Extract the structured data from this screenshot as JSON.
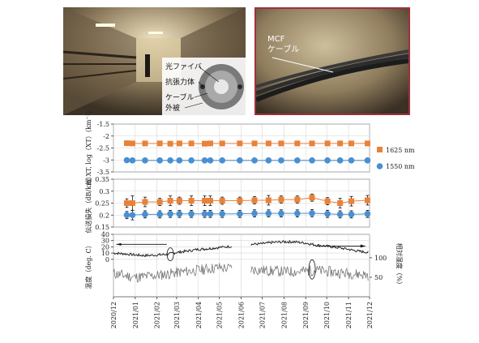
{
  "photos": {
    "tunnel": {
      "callouts": [
        "光ファイバ",
        "抗張力体",
        "ケーブル",
        "外被"
      ]
    },
    "cable": {
      "label_line1": "MCF",
      "label_line2": "ケーブル"
    }
  },
  "colors": {
    "orange": "#e8823a",
    "blue": "#4a8fd0",
    "temp": "#222222",
    "humidity": "#777777",
    "grid": "#d7d7d7",
    "photo_border": "#a0303a"
  },
  "chart_data": [
    {
      "type": "line",
      "ylabel": "総 XT, log（XT）(km⁻¹)",
      "ylim": [
        -3.5,
        -1.5
      ],
      "yticks": [
        "-1.5",
        "-2",
        "-2.5",
        "-3",
        "-3.5"
      ],
      "legend_position": "right",
      "series": [
        {
          "name": "1625 nm",
          "marker": "square",
          "color": "#e8823a",
          "points": [
            [
              "2020-12-20",
              -2.3
            ],
            [
              "2020-12-28",
              -2.31
            ],
            [
              "2021-01-15",
              -2.31
            ],
            [
              "2021-02-05",
              -2.31
            ],
            [
              "2021-02-20",
              -2.32
            ],
            [
              "2021-03-05",
              -2.31
            ],
            [
              "2021-03-22",
              -2.31
            ],
            [
              "2021-04-10",
              -2.32
            ],
            [
              "2021-04-18",
              -2.31
            ],
            [
              "2021-05-05",
              -2.31
            ],
            [
              "2021-05-30",
              -2.31
            ],
            [
              "2021-06-20",
              -2.31
            ],
            [
              "2021-07-10",
              -2.31
            ],
            [
              "2021-07-28",
              -2.31
            ],
            [
              "2021-08-20",
              -2.31
            ],
            [
              "2021-09-10",
              -2.31
            ],
            [
              "2021-10-02",
              -2.31
            ],
            [
              "2021-10-20",
              -2.31
            ],
            [
              "2021-11-05",
              -2.31
            ],
            [
              "2021-11-28",
              -2.31
            ]
          ]
        },
        {
          "name": "1550 nm",
          "marker": "circle",
          "color": "#4a8fd0",
          "points": [
            [
              "2020-12-20",
              -3.01
            ],
            [
              "2020-12-28",
              -3.02
            ],
            [
              "2021-01-15",
              -3.02
            ],
            [
              "2021-02-05",
              -3.02
            ],
            [
              "2021-02-20",
              -3.02
            ],
            [
              "2021-03-05",
              -3.02
            ],
            [
              "2021-03-22",
              -3.02
            ],
            [
              "2021-04-10",
              -3.02
            ],
            [
              "2021-04-18",
              -3.02
            ],
            [
              "2021-05-05",
              -3.02
            ],
            [
              "2021-05-30",
              -3.02
            ],
            [
              "2021-06-20",
              -3.02
            ],
            [
              "2021-07-10",
              -3.02
            ],
            [
              "2021-07-28",
              -3.02
            ],
            [
              "2021-08-20",
              -3.02
            ],
            [
              "2021-09-10",
              -3.02
            ],
            [
              "2021-10-02",
              -3.02
            ],
            [
              "2021-10-20",
              -3.02
            ],
            [
              "2021-11-05",
              -3.02
            ],
            [
              "2021-11-28",
              -3.02
            ]
          ]
        }
      ]
    },
    {
      "type": "scatter",
      "ylabel": "伝送損失（dB/km）",
      "ylim": [
        0.15,
        0.35
      ],
      "yticks": [
        "0.35",
        "0.3",
        "0.25",
        "0.2",
        "0.15"
      ],
      "series": [
        {
          "name": "1625 nm",
          "marker": "square",
          "color": "#e8823a",
          "points": [
            [
              "2020-12-20",
              0.25,
              0.018
            ],
            [
              "2020-12-28",
              0.25,
              0.03
            ],
            [
              "2021-01-15",
              0.255,
              0.02
            ],
            [
              "2021-02-05",
              0.255,
              0.015
            ],
            [
              "2021-02-20",
              0.26,
              0.02
            ],
            [
              "2021-03-05",
              0.26,
              0.015
            ],
            [
              "2021-03-22",
              0.26,
              0.02
            ],
            [
              "2021-04-10",
              0.26,
              0.02
            ],
            [
              "2021-04-18",
              0.26,
              0.02
            ],
            [
              "2021-05-05",
              0.26,
              0.015
            ],
            [
              "2021-05-30",
              0.26,
              0.015
            ],
            [
              "2021-06-20",
              0.262,
              0.015
            ],
            [
              "2021-07-10",
              0.262,
              0.02
            ],
            [
              "2021-07-28",
              0.265,
              0.015
            ],
            [
              "2021-08-20",
              0.265,
              0.015
            ],
            [
              "2021-09-10",
              0.273,
              0.015
            ],
            [
              "2021-10-02",
              0.258,
              0.015
            ],
            [
              "2021-10-20",
              0.25,
              0.02
            ],
            [
              "2021-11-05",
              0.258,
              0.02
            ],
            [
              "2021-11-28",
              0.262,
              0.02
            ]
          ]
        },
        {
          "name": "1550 nm",
          "marker": "circle",
          "color": "#4a8fd0",
          "points": [
            [
              "2020-12-20",
              0.2,
              0.015
            ],
            [
              "2020-12-28",
              0.2,
              0.02
            ],
            [
              "2021-01-15",
              0.203,
              0.015
            ],
            [
              "2021-02-05",
              0.203,
              0.015
            ],
            [
              "2021-02-20",
              0.205,
              0.015
            ],
            [
              "2021-03-05",
              0.205,
              0.015
            ],
            [
              "2021-03-22",
              0.205,
              0.015
            ],
            [
              "2021-04-10",
              0.205,
              0.015
            ],
            [
              "2021-04-18",
              0.205,
              0.015
            ],
            [
              "2021-05-05",
              0.205,
              0.015
            ],
            [
              "2021-05-30",
              0.205,
              0.015
            ],
            [
              "2021-06-20",
              0.207,
              0.015
            ],
            [
              "2021-07-10",
              0.207,
              0.015
            ],
            [
              "2021-07-28",
              0.207,
              0.015
            ],
            [
              "2021-08-20",
              0.207,
              0.015
            ],
            [
              "2021-09-10",
              0.208,
              0.015
            ],
            [
              "2021-10-02",
              0.205,
              0.015
            ],
            [
              "2021-10-20",
              0.203,
              0.015
            ],
            [
              "2021-11-05",
              0.203,
              0.015
            ],
            [
              "2021-11-28",
              0.205,
              0.015
            ]
          ]
        }
      ]
    },
    {
      "type": "line",
      "ylabel_left": "温度（deg. C）",
      "ylim_left": [
        -60,
        40
      ],
      "yticks_left": [
        "40",
        "30",
        "20",
        "10",
        "0"
      ],
      "ylabel_right": "相対湿度（%）",
      "ylim_right": [
        0,
        160
      ],
      "yticks_right": [
        "100",
        "50"
      ],
      "x_ticks": [
        "2020/12",
        "2021/01",
        "2021/02",
        "2021/03",
        "2021/04",
        "2021/05",
        "2021/06",
        "2021/07",
        "2021/08",
        "2021/09",
        "2021/10",
        "2021/11",
        "2021/12"
      ],
      "series": [
        {
          "name": "温度",
          "color": "#222222",
          "axis": "left",
          "points": [
            [
              "2020-12-01",
              10
            ],
            [
              "2020-12-15",
              9
            ],
            [
              "2021-01-01",
              7
            ],
            [
              "2021-01-15",
              6
            ],
            [
              "2021-02-01",
              7
            ],
            [
              "2021-02-15",
              8
            ],
            [
              "2021-03-01",
              11
            ],
            [
              "2021-03-15",
              13
            ],
            [
              "2021-04-01",
              16
            ],
            [
              "2021-04-15",
              17
            ],
            [
              "2021-05-01",
              19
            ],
            [
              "2021-05-20",
              21
            ],
            [
              "2021-06-15",
              24
            ],
            [
              "2021-07-01",
              25
            ],
            [
              "2021-07-15",
              27
            ],
            [
              "2021-08-01",
              28
            ],
            [
              "2021-08-15",
              28
            ],
            [
              "2021-09-01",
              26
            ],
            [
              "2021-09-15",
              23
            ],
            [
              "2021-10-01",
              21
            ],
            [
              "2021-10-15",
              19
            ],
            [
              "2021-11-01",
              16
            ],
            [
              "2021-11-15",
              13
            ],
            [
              "2021-11-30",
              11
            ]
          ]
        },
        {
          "name": "湿度",
          "color": "#777777",
          "axis": "right",
          "points": [
            [
              "2020-12-01",
              60
            ],
            [
              "2020-12-15",
              55
            ],
            [
              "2021-01-01",
              50
            ],
            [
              "2021-01-15",
              52
            ],
            [
              "2021-02-01",
              55
            ],
            [
              "2021-02-15",
              58
            ],
            [
              "2021-03-01",
              62
            ],
            [
              "2021-03-15",
              65
            ],
            [
              "2021-04-01",
              68
            ],
            [
              "2021-04-15",
              72
            ],
            [
              "2021-05-01",
              75
            ],
            [
              "2021-05-20",
              72
            ],
            [
              "2021-06-15",
              70
            ],
            [
              "2021-07-01",
              68
            ],
            [
              "2021-07-15",
              66
            ],
            [
              "2021-08-01",
              65
            ],
            [
              "2021-08-15",
              64
            ],
            [
              "2021-09-01",
              66
            ],
            [
              "2021-09-15",
              68
            ],
            [
              "2021-10-01",
              65
            ],
            [
              "2021-10-15",
              62
            ],
            [
              "2021-11-01",
              60
            ],
            [
              "2021-11-15",
              58
            ],
            [
              "2021-11-30",
              55
            ]
          ]
        }
      ],
      "annotations": {
        "temp_arrow_direction": "left",
        "humidity_arrow_direction": "right"
      }
    }
  ]
}
